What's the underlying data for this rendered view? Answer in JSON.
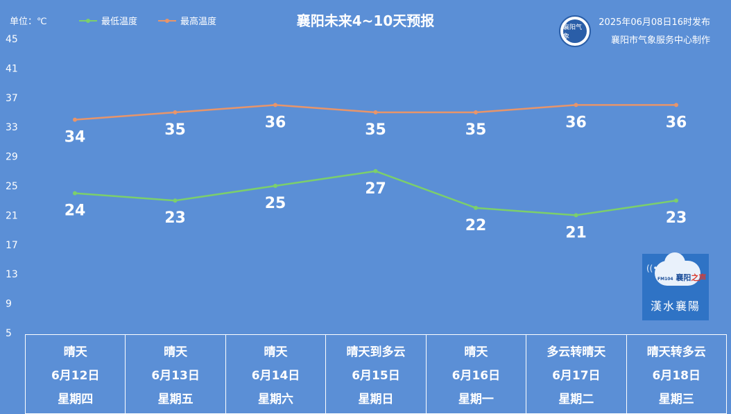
{
  "header": {
    "unit_label": "单位：℃",
    "title": "襄阳未来4~10天预报",
    "publish_time": "2025年06月08日16时发布",
    "publisher": "襄阳市气象服务中心制作",
    "logo_text": "襄阳气象"
  },
  "badge": {
    "station_small": "FM104",
    "station_name_a": "襄阳",
    "station_name_b": "之声",
    "brand": "漢水襄陽"
  },
  "colors": {
    "background": "#5b8fd6",
    "low_line": "#7ccf6b",
    "high_line": "#e8956a"
  },
  "chart_data": {
    "type": "line",
    "categories": [
      "6月12日",
      "6月13日",
      "6月14日",
      "6月15日",
      "6月16日",
      "6月17日",
      "6月18日"
    ],
    "series": [
      {
        "name": "最低温度",
        "values": [
          24,
          23,
          25,
          27,
          22,
          21,
          23
        ]
      },
      {
        "name": "最高温度",
        "values": [
          34,
          35,
          36,
          35,
          35,
          36,
          36
        ]
      }
    ],
    "y_ticks": [
      "45",
      "41",
      "37",
      "33",
      "29",
      "25",
      "21",
      "17",
      "13",
      "9",
      "5"
    ],
    "ylim": [
      5,
      45
    ],
    "grid": false,
    "legend_position": "top-left"
  },
  "forecast": [
    {
      "weather": "晴天",
      "date": "6月12日",
      "weekday": "星期四"
    },
    {
      "weather": "晴天",
      "date": "6月13日",
      "weekday": "星期五"
    },
    {
      "weather": "晴天",
      "date": "6月14日",
      "weekday": "星期六"
    },
    {
      "weather": "晴天到多云",
      "date": "6月15日",
      "weekday": "星期日"
    },
    {
      "weather": "晴天",
      "date": "6月16日",
      "weekday": "星期一"
    },
    {
      "weather": "多云转晴天",
      "date": "6月17日",
      "weekday": "星期二"
    },
    {
      "weather": "晴天转多云",
      "date": "6月18日",
      "weekday": "星期三"
    }
  ]
}
